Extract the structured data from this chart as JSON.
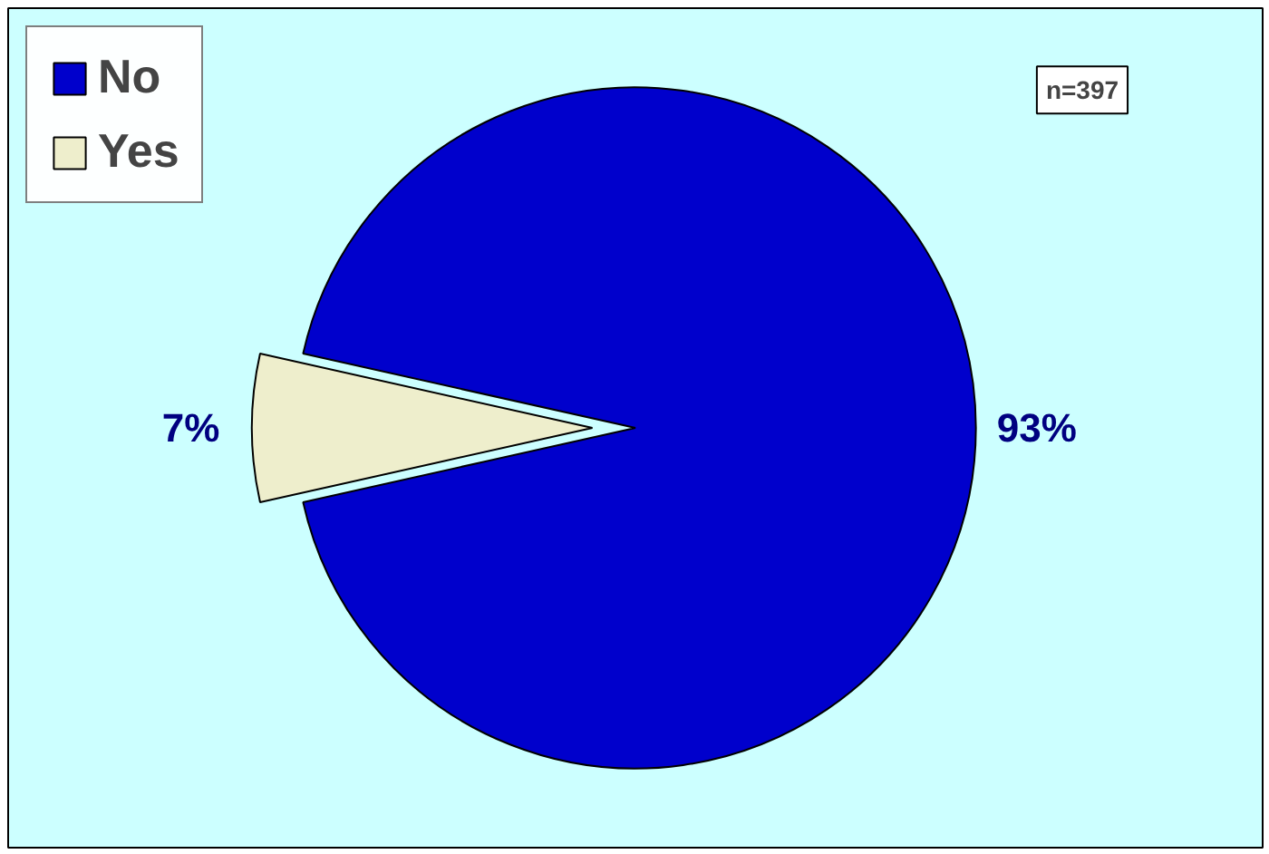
{
  "chart_data": {
    "type": "pie",
    "categories": [
      "No",
      "Yes"
    ],
    "values": [
      93,
      7
    ],
    "colors": [
      "#0000cc",
      "#eeeecc"
    ],
    "value_labels": [
      "93%",
      "7%"
    ],
    "annotations": [
      "n=397"
    ],
    "legend": "top left"
  }
}
